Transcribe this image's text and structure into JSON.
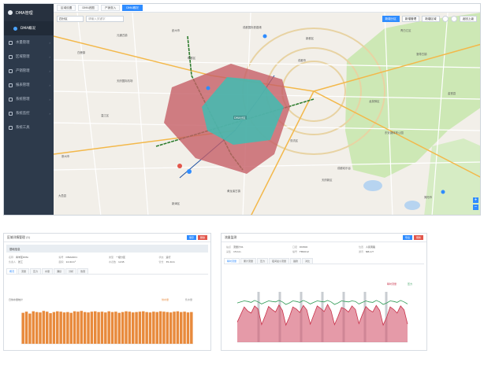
{
  "sidebar": {
    "brand": "DMA管理",
    "items": [
      {
        "label": "DMA概况",
        "active": true,
        "sub": true
      },
      {
        "label": "水量管理"
      },
      {
        "label": "区域管理"
      },
      {
        "label": "产销管理"
      },
      {
        "label": "报表管理"
      },
      {
        "label": "系统管理"
      },
      {
        "label": "系统监控"
      },
      {
        "label": "系统工具"
      }
    ]
  },
  "tabs": [
    {
      "label": "区域设置"
    },
    {
      "label": "DMA底图"
    },
    {
      "label": "产销查入"
    },
    {
      "label": "DMA概况",
      "active": true
    }
  ],
  "map": {
    "select_value": "四分区",
    "search_placeholder": "请输入关键字",
    "tool_buttons": [
      "新增分区",
      "新增管理",
      "新增区域",
      "返回上级"
    ],
    "labels": [
      "成都国际铁路港",
      "元通古镇",
      "白鹿镇",
      "天府国际机场",
      "洛带古镇",
      "成都市",
      "龙泉驿区",
      "温江区",
      "双流区",
      "新都区",
      "郫都区",
      "东安湖体育公园",
      "成都欢乐谷",
      "黄龙溪古镇",
      "青白江区",
      "金堂县",
      "天府新区",
      "简阳市",
      "彭州市",
      "崇州市",
      "大邑县",
      "新津区"
    ],
    "dma_label": "DMA分区"
  },
  "left_panel": {
    "title": "区域详情管理 (1)",
    "section_title": "基础信息",
    "buttons": [
      "保存",
      "删除"
    ],
    "fields": [
      {
        "k": "名称",
        "v": "青羊区DMA"
      },
      {
        "k": "编号",
        "v": "DMA0001"
      },
      {
        "k": "类型",
        "v": "一级分区"
      },
      {
        "k": "状态",
        "v": "运行"
      },
      {
        "k": "负责人",
        "v": "张工"
      },
      {
        "k": "面积",
        "v": "12.6km²"
      },
      {
        "k": "水表数",
        "v": "1245"
      },
      {
        "k": "管长",
        "v": "35.2km"
      }
    ],
    "subtabs": [
      "概况",
      "流量",
      "压力",
      "水量",
      "漏损",
      "分析",
      "告警"
    ],
    "chart_title": "日供水量统计",
    "legend": [
      "供水量",
      "售水量"
    ]
  },
  "right_panel": {
    "title": "流量监测",
    "buttons": [
      "导出",
      "刷新"
    ],
    "fields": [
      {
        "k": "站点",
        "v": "流量计01"
      },
      {
        "k": "口径",
        "v": "DN300"
      },
      {
        "k": "位置",
        "v": "人民南路"
      },
      {
        "k": "采集",
        "v": "15min"
      },
      {
        "k": "编号",
        "v": "FM0012"
      },
      {
        "k": "通讯",
        "v": "NB-IoT"
      }
    ],
    "subtabs": [
      "瞬时流量",
      "累计流量",
      "压力",
      "夜间最小流量",
      "趋势",
      "对比"
    ],
    "legend": [
      "瞬时流量",
      "压力"
    ]
  },
  "colors": {
    "sidebar_bg": "#2d3a4b",
    "accent": "#2f8cff",
    "dma_red": "#c65f66",
    "dma_teal": "#3fbdb3",
    "bar_orange": "#e88a3c",
    "line_red": "#c8324a",
    "line_green": "#2e9a55"
  },
  "chart_data": [
    {
      "type": "bar",
      "title": "日供水量统计",
      "series": [
        {
          "name": "供水量",
          "values": [
            82,
            85,
            80,
            86,
            84,
            83,
            87,
            85,
            81,
            84,
            86,
            85,
            83,
            84,
            82,
            86,
            85,
            87,
            84,
            83,
            85,
            86,
            84,
            85,
            83,
            86,
            84,
            85,
            82,
            84,
            86,
            85,
            83,
            84,
            85,
            86,
            84,
            83,
            85,
            84,
            86,
            85,
            84,
            83,
            85,
            86,
            84,
            85,
            83,
            84
          ]
        }
      ],
      "ylim": [
        0,
        100
      ]
    },
    {
      "type": "line",
      "title": "流量监测",
      "series": [
        {
          "name": "瞬时流量",
          "values": [
            40,
            55,
            70,
            62,
            58,
            72,
            66,
            35,
            52,
            71,
            65,
            60,
            74,
            63,
            34,
            50,
            70,
            66,
            59,
            73,
            64,
            36,
            54,
            72,
            67,
            61,
            75,
            62,
            35,
            51,
            69,
            66,
            60,
            72,
            65,
            37,
            55,
            71,
            64,
            60,
            73,
            63,
            34,
            50,
            70,
            65,
            58,
            72,
            64,
            36
          ]
        },
        {
          "name": "压力",
          "values": [
            78,
            80,
            82,
            81,
            79,
            83,
            80,
            76,
            79,
            82,
            81,
            80,
            83,
            80,
            75,
            78,
            82,
            81,
            79,
            83,
            80,
            76,
            79,
            82,
            81,
            80,
            83,
            80,
            75,
            78,
            82,
            81,
            80,
            82,
            81,
            76,
            79,
            82,
            80,
            79,
            83,
            80,
            75,
            78,
            82,
            81,
            79,
            83,
            80,
            76
          ]
        }
      ],
      "ylim": [
        0,
        100
      ]
    }
  ]
}
